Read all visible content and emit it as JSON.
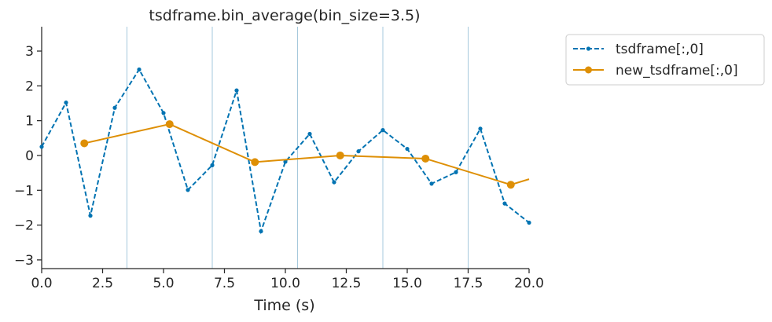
{
  "chart_data": {
    "type": "line",
    "title": "tsdframe.bin_average(bin_size=3.5)",
    "xlabel": "Time (s)",
    "ylabel": "",
    "xlim": [
      0,
      20
    ],
    "ylim": [
      -3.25,
      3.7
    ],
    "x_ticks": [
      0,
      2.5,
      5,
      7.5,
      10,
      12.5,
      15,
      17.5,
      20
    ],
    "x_tick_labels": [
      "0.0",
      "2.5",
      "5.0",
      "7.5",
      "10.0",
      "12.5",
      "15.0",
      "17.5",
      "20.0"
    ],
    "y_ticks": [
      -3,
      -2,
      -1,
      0,
      1,
      2,
      3
    ],
    "y_tick_labels": [
      "−3",
      "−2",
      "−1",
      "0",
      "1",
      "2",
      "3"
    ],
    "bin_edges": [
      3.5,
      7,
      10.5,
      14,
      17.5
    ],
    "grid": false,
    "legend_position": "outside-right",
    "series": [
      {
        "name": "tsdframe[:,0]",
        "color": "#0173b2",
        "style": "dashed-dot-markers",
        "x": [
          0,
          1,
          2,
          3,
          4,
          5,
          6,
          7,
          8,
          9,
          10,
          11,
          12,
          13,
          14,
          15,
          16,
          17,
          18,
          19,
          20
        ],
        "y": [
          0.25,
          1.52,
          -1.73,
          1.37,
          2.47,
          1.22,
          -0.99,
          -0.28,
          1.87,
          -2.18,
          -0.18,
          0.62,
          -0.77,
          0.12,
          0.73,
          0.19,
          -0.81,
          -0.48,
          0.77,
          -1.38,
          -1.93
        ]
      },
      {
        "name": "new_tsdframe[:,0]",
        "color": "#de8f05",
        "style": "solid-circle-markers",
        "x": [
          1.75,
          5.25,
          8.75,
          12.25,
          15.75,
          19.25
        ],
        "y": [
          0.35,
          0.9,
          -0.19,
          0.0,
          -0.09,
          -0.84
        ],
        "extend_to": [
          20,
          -0.68
        ]
      }
    ]
  }
}
